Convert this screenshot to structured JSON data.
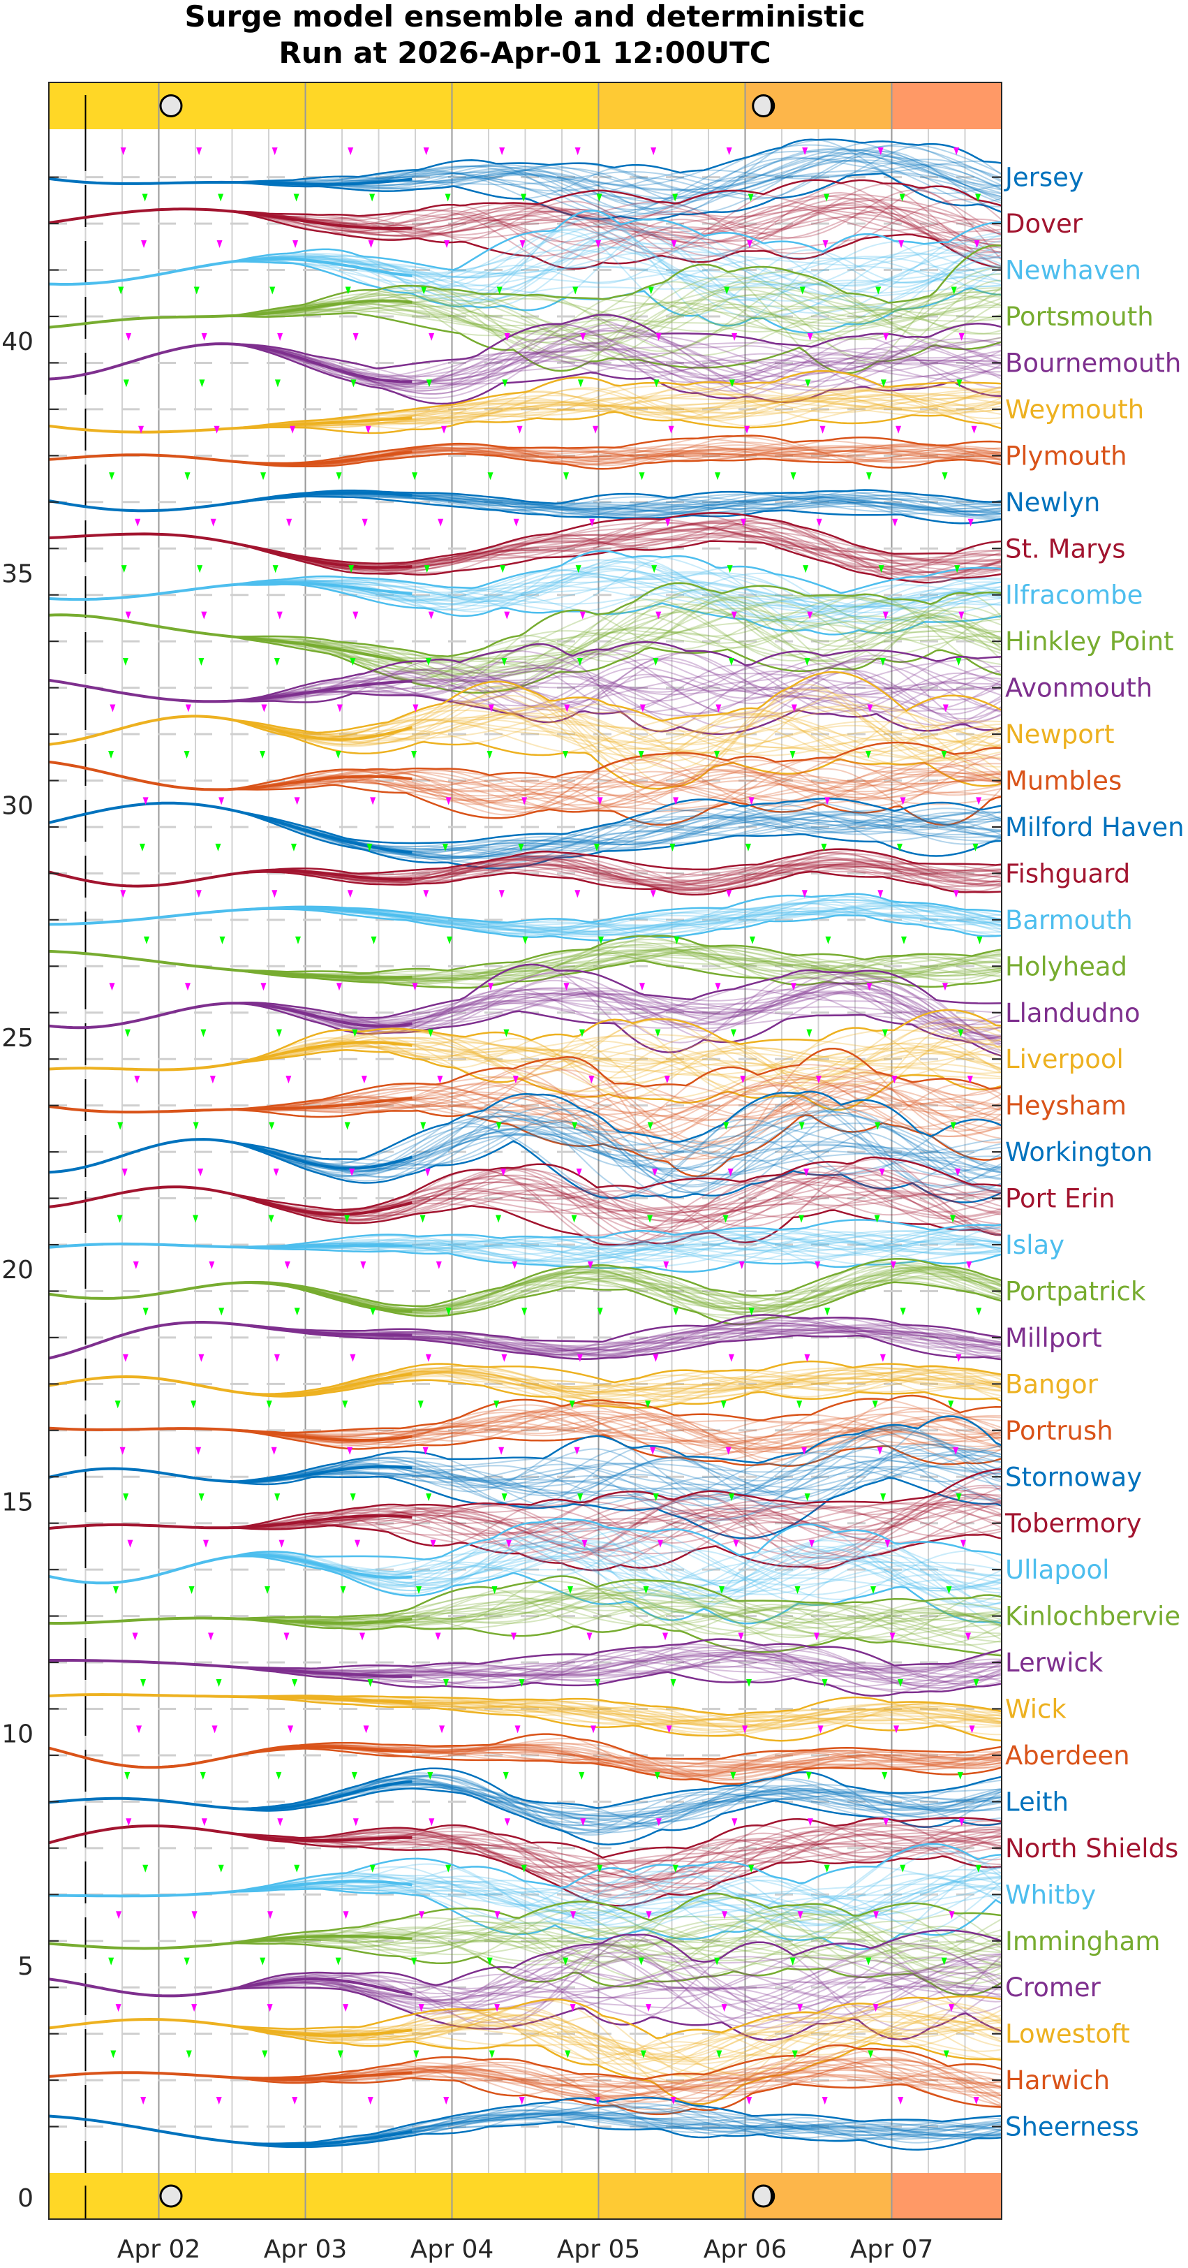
{
  "chart_data": {
    "type": "line",
    "title": [
      "Surge model ensemble and deterministic",
      "Run at 2026-Apr-01 12:00UTC"
    ],
    "xlabel": "",
    "ylabel": "",
    "x_range": [
      "2026-04-01 06:00",
      "2026-04-07 18:00"
    ],
    "run_time": "2026-04-01 12:00",
    "x_ticks": [
      "Apr 02",
      "Apr 03",
      "Apr 04",
      "Apr 05",
      "Apr 06",
      "Apr 07"
    ],
    "x_tick_dates": [
      "2026-04-02",
      "2026-04-03",
      "2026-04-04",
      "2026-04-05",
      "2026-04-06",
      "2026-04-07"
    ],
    "ylim": [
      0,
      44
    ],
    "y_ticks": [
      0,
      5,
      10,
      15,
      20,
      25,
      30,
      35,
      40
    ],
    "grid": true,
    "series_colors": [
      "#0072BD",
      "#A2142F",
      "#4DBEEE",
      "#77AC30",
      "#7E2F8E",
      "#EDB120",
      "#D95319"
    ],
    "marker_colors": [
      "#FF00FF",
      "#00FF00"
    ],
    "stations": [
      {
        "name": "Jersey",
        "offset": 43
      },
      {
        "name": "Dover",
        "offset": 42
      },
      {
        "name": "Newhaven",
        "offset": 41
      },
      {
        "name": "Portsmouth",
        "offset": 40
      },
      {
        "name": "Bournemouth",
        "offset": 39
      },
      {
        "name": "Weymouth",
        "offset": 38
      },
      {
        "name": "Plymouth",
        "offset": 37
      },
      {
        "name": "Newlyn",
        "offset": 36
      },
      {
        "name": "St. Marys",
        "offset": 35
      },
      {
        "name": "Ilfracombe",
        "offset": 34
      },
      {
        "name": "Hinkley Point",
        "offset": 33
      },
      {
        "name": "Avonmouth",
        "offset": 32
      },
      {
        "name": "Newport",
        "offset": 31
      },
      {
        "name": "Mumbles",
        "offset": 30
      },
      {
        "name": "Milford Haven",
        "offset": 29
      },
      {
        "name": "Fishguard",
        "offset": 28
      },
      {
        "name": "Barmouth",
        "offset": 27
      },
      {
        "name": "Holyhead",
        "offset": 26
      },
      {
        "name": "Llandudno",
        "offset": 25
      },
      {
        "name": "Liverpool",
        "offset": 24
      },
      {
        "name": "Heysham",
        "offset": 23
      },
      {
        "name": "Workington",
        "offset": 22
      },
      {
        "name": "Port Erin",
        "offset": 21
      },
      {
        "name": "Islay",
        "offset": 20
      },
      {
        "name": "Portpatrick",
        "offset": 19
      },
      {
        "name": "Millport",
        "offset": 18
      },
      {
        "name": "Bangor",
        "offset": 17
      },
      {
        "name": "Portrush",
        "offset": 16
      },
      {
        "name": "Stornoway",
        "offset": 15
      },
      {
        "name": "Tobermory",
        "offset": 14
      },
      {
        "name": "Ullapool",
        "offset": 13
      },
      {
        "name": "Kinlochbervie",
        "offset": 12
      },
      {
        "name": "Lerwick",
        "offset": 11
      },
      {
        "name": "Wick",
        "offset": 10
      },
      {
        "name": "Aberdeen",
        "offset": 9
      },
      {
        "name": "Leith",
        "offset": 8
      },
      {
        "name": "North Shields",
        "offset": 7
      },
      {
        "name": "Whitby",
        "offset": 6
      },
      {
        "name": "Immingham",
        "offset": 5
      },
      {
        "name": "Cromer",
        "offset": 4
      },
      {
        "name": "Lowestoft",
        "offset": 3
      },
      {
        "name": "Harwich",
        "offset": 2
      },
      {
        "name": "Sheerness",
        "offset": 1
      }
    ],
    "day_bands": [
      {
        "from": "2026-04-01 06:00",
        "to": "2026-04-05 00:00",
        "color": "#FFD726"
      },
      {
        "from": "2026-04-05 00:00",
        "to": "2026-04-06 00:00",
        "color": "#FECA34"
      },
      {
        "from": "2026-04-06 00:00",
        "to": "2026-04-07 00:00",
        "color": "#FDB64A"
      },
      {
        "from": "2026-04-07 00:00",
        "to": "2026-04-07 18:00",
        "color": "#FF9966"
      }
    ],
    "moon_phases": [
      {
        "time": "2026-04-02 02:00",
        "icon": "full-moon-icon"
      },
      {
        "time": "2026-04-06 03:00",
        "icon": "waning-gibbous-moon-icon"
      }
    ]
  }
}
